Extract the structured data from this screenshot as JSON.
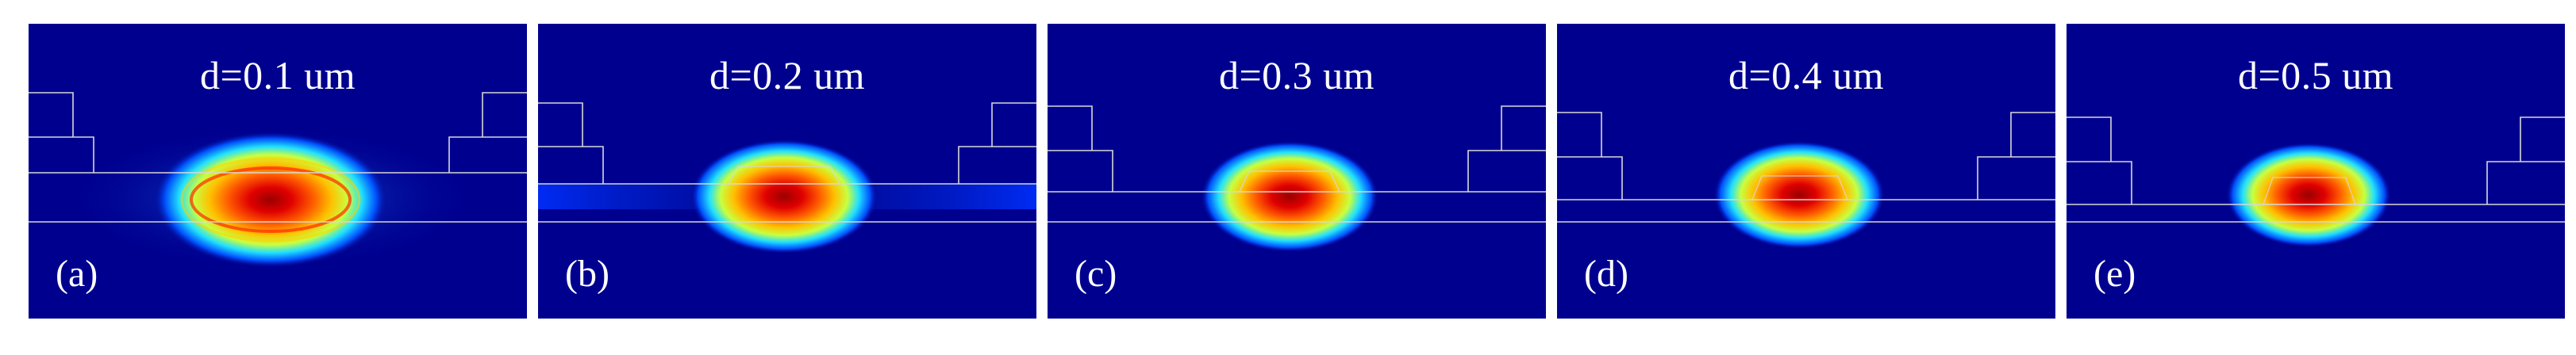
{
  "figure": {
    "panels": [
      {
        "id": "a",
        "title": "d=0.1 um",
        "label": "(a)"
      },
      {
        "id": "b",
        "title": "d=0.2 um",
        "label": "(b)"
      },
      {
        "id": "c",
        "title": "d=0.3 um",
        "label": "(c)"
      },
      {
        "id": "d",
        "title": "d=0.4 um",
        "label": "(d)"
      },
      {
        "id": "e",
        "title": "d=0.5 um",
        "label": "(e)"
      }
    ],
    "colors": {
      "background": "#00008f",
      "field_peak": "#c80000",
      "field_mid": "#ffb000",
      "field_outer": "#00d0ff",
      "outline": "#d8d8d8"
    }
  }
}
